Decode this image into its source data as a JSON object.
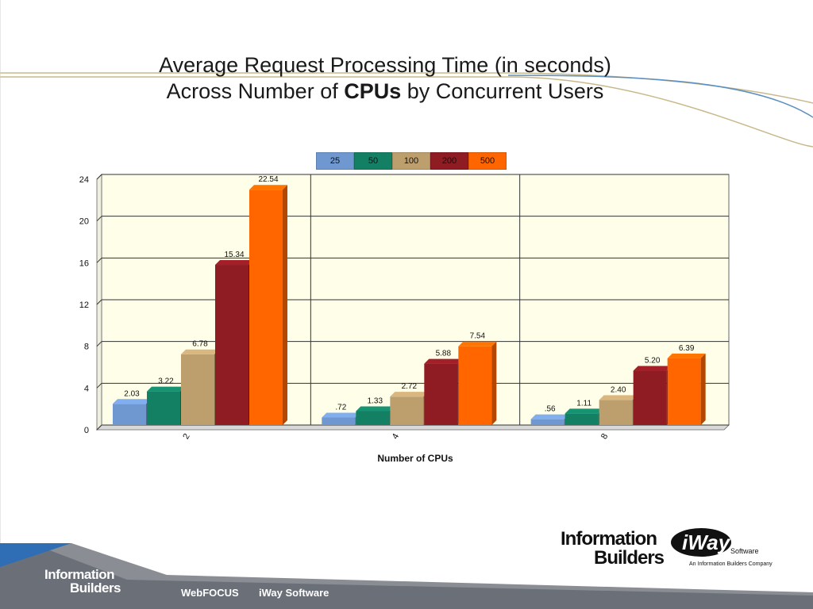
{
  "slide": {
    "title_line1": "Average Request Processing Time (in seconds)",
    "title_line2_prefix": "Across Number of ",
    "title_line2_bold": "CPUs",
    "title_line2_suffix": " by Concurrent Users"
  },
  "chart_data": {
    "type": "bar",
    "categories": [
      "2",
      "4",
      "8"
    ],
    "xlabel": "Number of CPUs",
    "ylabel": "",
    "ylim": [
      0,
      24
    ],
    "yticks": [
      0,
      4,
      8,
      12,
      16,
      20,
      24
    ],
    "grid": true,
    "legend_position": "top",
    "series": [
      {
        "name": "25",
        "color": "#6f97d0",
        "values": [
          2.03,
          0.72,
          0.56
        ],
        "labels": [
          "2.03",
          ".72",
          ".56"
        ]
      },
      {
        "name": "50",
        "color": "#138063",
        "values": [
          3.22,
          1.33,
          1.11
        ],
        "labels": [
          "3.22",
          "1.33",
          "1.11"
        ]
      },
      {
        "name": "100",
        "color": "#bd9f6e",
        "values": [
          6.78,
          2.72,
          2.4
        ],
        "labels": [
          "6.78",
          "2.72",
          "2.40"
        ]
      },
      {
        "name": "200",
        "color": "#8f1b23",
        "values": [
          15.34,
          5.88,
          5.2
        ],
        "labels": [
          "15.34",
          "5.88",
          "5.20"
        ]
      },
      {
        "name": "500",
        "color": "#ff6600",
        "values": [
          22.54,
          7.54,
          6.39
        ],
        "labels": [
          "22.54",
          "7.54",
          "6.39"
        ]
      }
    ],
    "plot_background": "#fffee8"
  },
  "footer": {
    "company_line1": "Information",
    "company_line2": "Builders",
    "link1": "WebFOCUS",
    "link2": "iWay Software"
  },
  "logos": {
    "ib_line1": "Information",
    "ib_line2": "Builders",
    "iway_name": "iWay",
    "iway_software": "Software",
    "iway_sub": "An Information Builders Company"
  }
}
